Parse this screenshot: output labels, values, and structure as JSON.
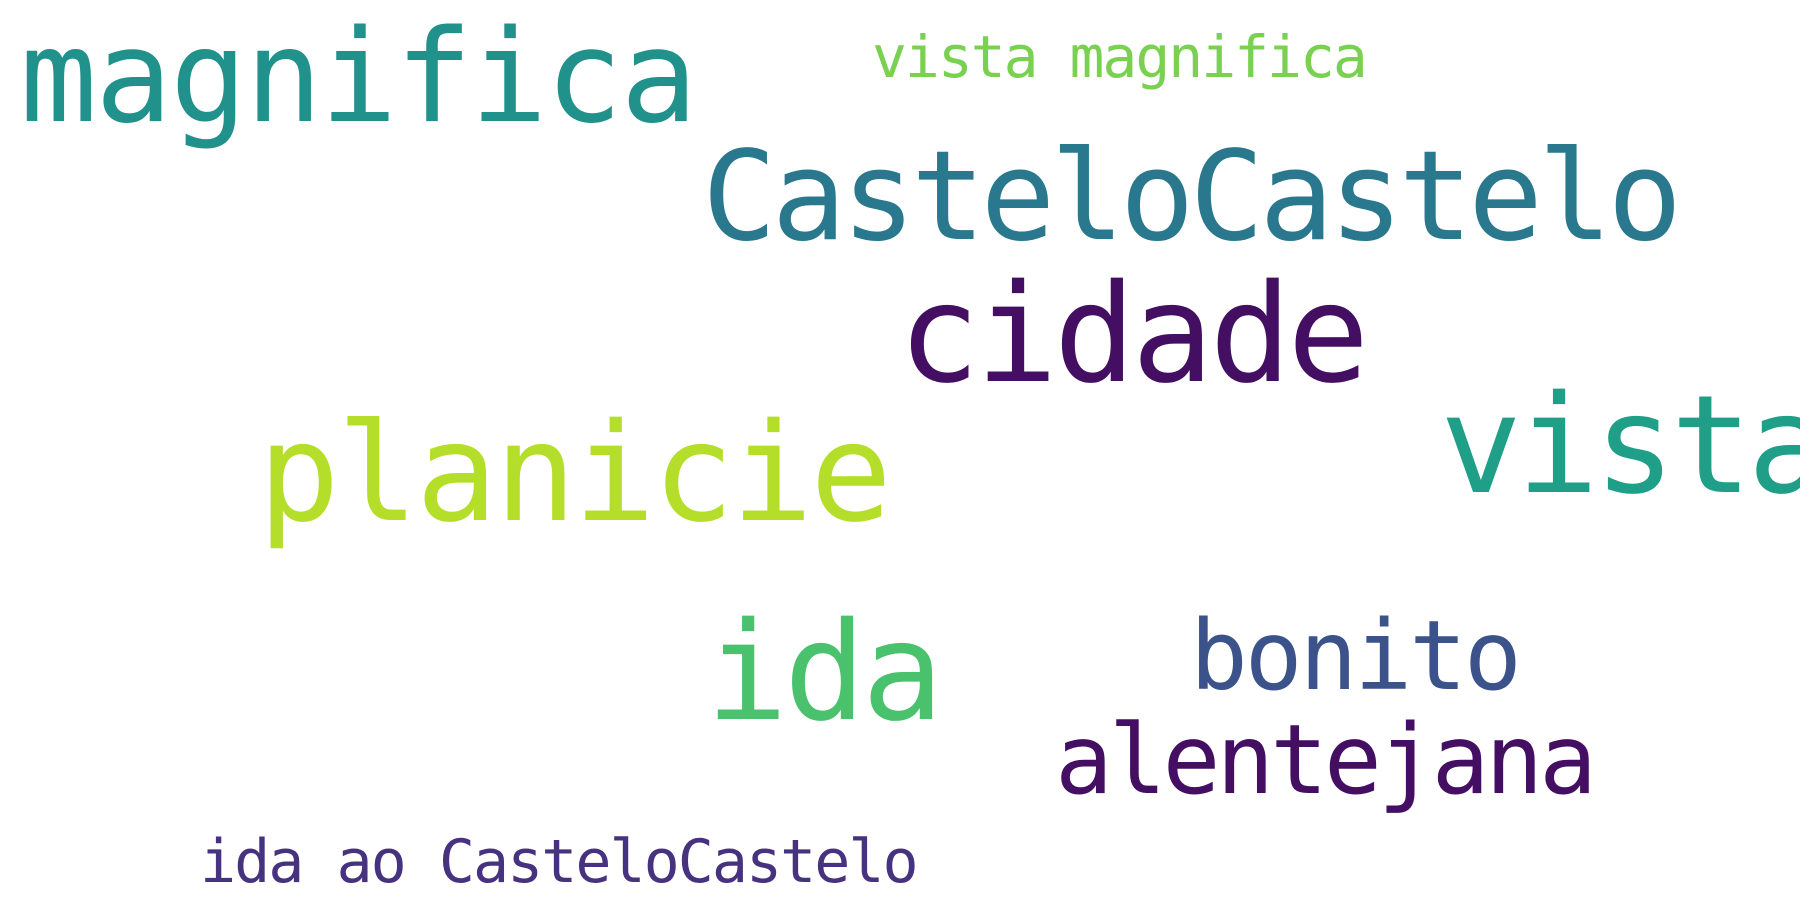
{
  "word_cloud": {
    "background": "#ffffff",
    "words": [
      {
        "text": "magnifica",
        "color": "#21918c"
      },
      {
        "text": "vista magnifica",
        "color": "#7ad151"
      },
      {
        "text": "CasteloCastelo",
        "color": "#2a788e"
      },
      {
        "text": "cidade",
        "color": "#440f62"
      },
      {
        "text": "vista",
        "color": "#1f9f88"
      },
      {
        "text": "planicie",
        "color": "#b5de2b"
      },
      {
        "text": "ida",
        "color": "#4ac16d"
      },
      {
        "text": "bonito",
        "color": "#3b528b"
      },
      {
        "text": "alentejana",
        "color": "#440f62"
      },
      {
        "text": "ida ao CasteloCastelo",
        "color": "#46327e"
      }
    ]
  }
}
